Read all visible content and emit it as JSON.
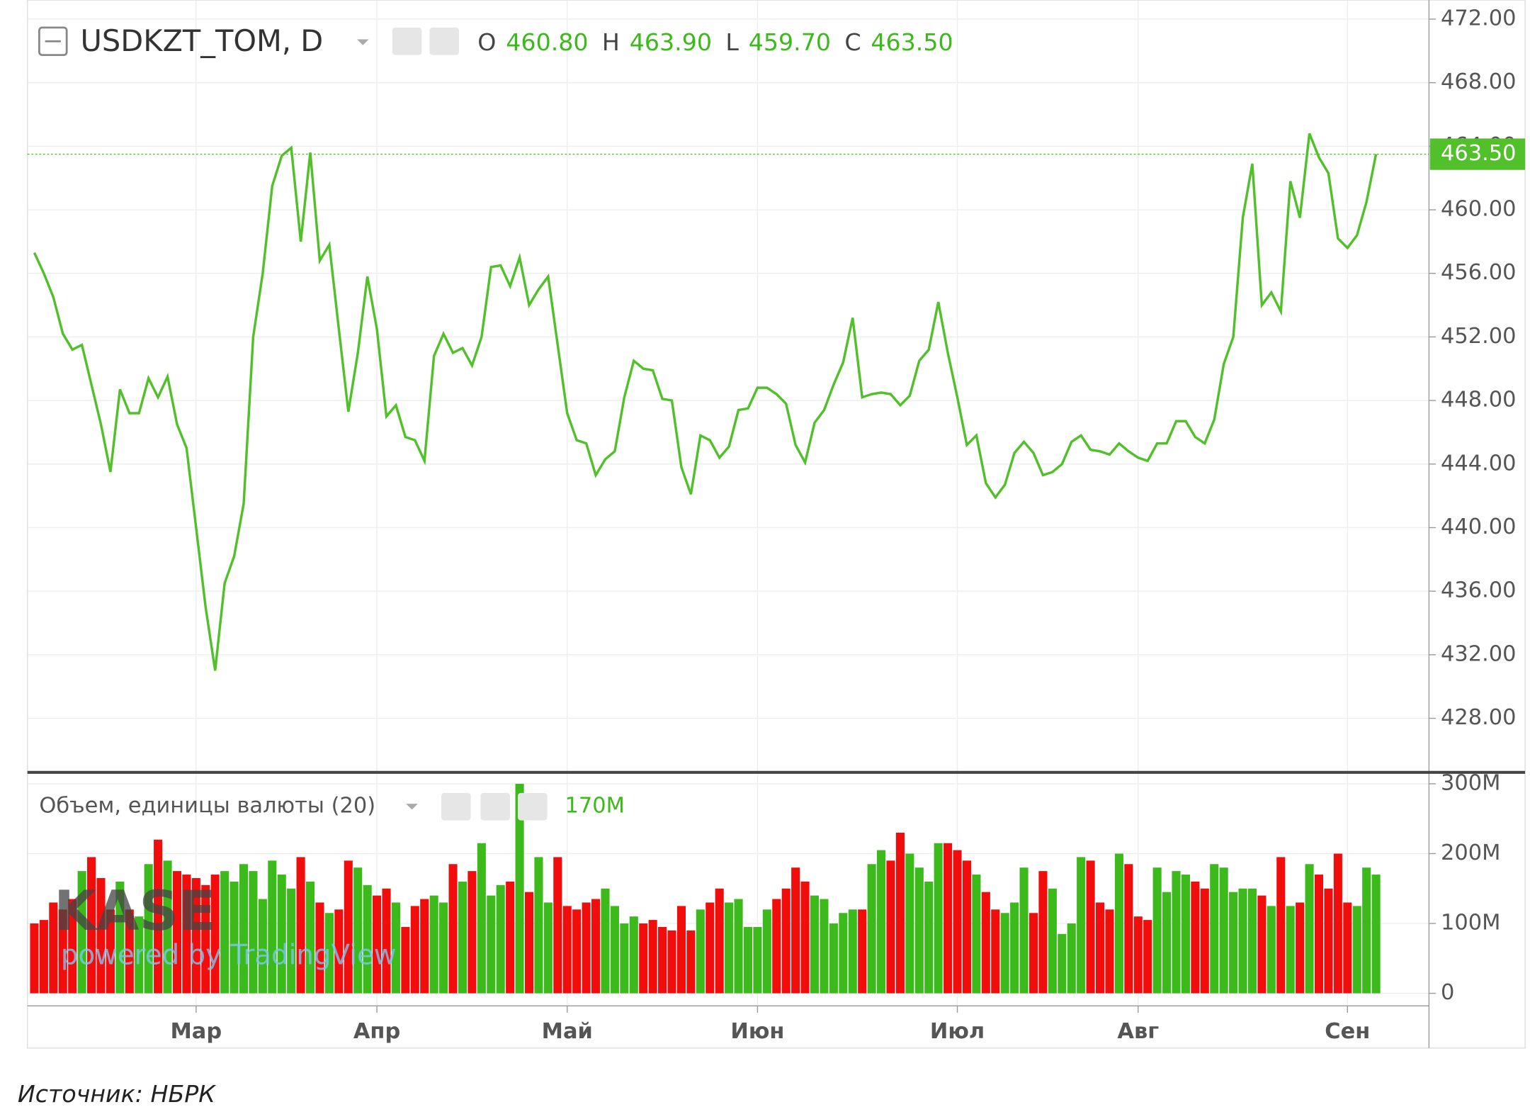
{
  "header": {
    "symbol": "USDKZT_TOM, D",
    "ohlc": [
      {
        "key": "O",
        "value": "460.80"
      },
      {
        "key": "H",
        "value": "463.90"
      },
      {
        "key": "L",
        "value": "459.70"
      },
      {
        "key": "C",
        "value": "463.50"
      }
    ],
    "volume_title": "Объем, единицы валюты (20)",
    "volume_current": "170M"
  },
  "watermark": {
    "brand": "KASE",
    "powered": "powered by TradingView"
  },
  "source": "Источник: НБРК",
  "chart_data": [
    {
      "type": "line",
      "color": "#52c02a",
      "grid": true,
      "categories": [
        null,
        null,
        null,
        null,
        null,
        null,
        null,
        null,
        null,
        null,
        null,
        null,
        null,
        null,
        null,
        null,
        null,
        "Мар",
        null,
        null,
        null,
        null,
        null,
        null,
        null,
        null,
        null,
        null,
        null,
        null,
        null,
        null,
        null,
        null,
        null,
        null,
        "Апр",
        null,
        null,
        null,
        null,
        null,
        null,
        null,
        null,
        null,
        null,
        null,
        null,
        null,
        null,
        null,
        null,
        null,
        null,
        null,
        "Май",
        null,
        null,
        null,
        null,
        null,
        null,
        null,
        null,
        null,
        null,
        null,
        null,
        null,
        null,
        null,
        null,
        null,
        null,
        null,
        "Июн",
        null,
        null,
        null,
        null,
        null,
        null,
        null,
        null,
        null,
        null,
        null,
        null,
        null,
        null,
        null,
        null,
        null,
        null,
        null,
        null,
        "Июл",
        null,
        null,
        null,
        null,
        null,
        null,
        null,
        null,
        null,
        null,
        null,
        null,
        null,
        null,
        null,
        null,
        null,
        null,
        "Авг",
        null,
        null,
        null,
        null,
        null,
        null,
        null,
        null,
        null,
        null,
        null,
        null,
        null,
        null,
        null,
        null,
        null,
        null,
        null,
        null,
        null,
        "Сен",
        null,
        null,
        null
      ],
      "values": [
        457.3,
        456,
        454.5,
        452.2,
        451.2,
        451.5,
        449,
        446.5,
        443.5,
        448.7,
        447.2,
        447.2,
        449.4,
        448.2,
        449.5,
        446.5,
        445,
        440,
        435,
        431,
        436.5,
        438.2,
        441.5,
        452,
        456,
        461.5,
        463.4,
        463.9,
        458,
        463.6,
        456.8,
        457.8,
        452.5,
        447.3,
        451,
        455.8,
        452.5,
        447,
        447.7,
        445.7,
        445.5,
        444.2,
        450.8,
        452.2,
        451,
        451.3,
        450.2,
        452,
        456.4,
        456.5,
        455.2,
        457,
        454,
        455,
        455.8,
        451.5,
        447.2,
        445.5,
        445.3,
        443.3,
        444.3,
        444.8,
        448.2,
        450.5,
        450,
        449.9,
        448.1,
        448,
        443.8,
        442.1,
        445.8,
        445.5,
        444.4,
        445.1,
        447.4,
        447.5,
        448.8,
        448.8,
        448.4,
        447.8,
        445.2,
        444.1,
        446.6,
        447.4,
        449,
        450.4,
        453.2,
        448.2,
        448.4,
        448.5,
        448.4,
        447.7,
        448.3,
        450.5,
        451.2,
        454.2,
        451,
        448.2,
        445.2,
        445.8,
        442.8,
        441.9,
        442.7,
        444.7,
        445.4,
        444.7,
        443.3,
        443.5,
        444,
        445.4,
        445.8,
        444.9,
        444.8,
        444.6,
        445.3,
        444.8,
        444.4,
        444.2,
        445.3,
        445.3,
        446.7,
        446.7,
        445.7,
        445.3,
        446.8,
        450.3,
        452,
        459.5,
        462.9,
        454,
        454.8,
        453.6,
        461.8,
        459.5,
        464.8,
        463.3,
        462.3,
        458.2,
        457.6,
        458.4,
        460.5,
        463.5
      ],
      "ylim": [
        424.6,
        473.2
      ],
      "yticks": [
        {
          "value": 428,
          "label": "428.00"
        },
        {
          "value": 432,
          "label": "432.00"
        },
        {
          "value": 436,
          "label": "436.00"
        },
        {
          "value": 440,
          "label": "440.00"
        },
        {
          "value": 444,
          "label": "444.00"
        },
        {
          "value": 448,
          "label": "448.00"
        },
        {
          "value": 452,
          "label": "452.00"
        },
        {
          "value": 456,
          "label": "456.00"
        },
        {
          "value": 460,
          "label": "460.00"
        },
        {
          "value": 464,
          "label": "464.00"
        },
        {
          "value": 468,
          "label": "468.00"
        },
        {
          "value": 472,
          "label": "472.00"
        }
      ],
      "last_price": {
        "value": 463.5,
        "label": "463.50"
      }
    },
    {
      "type": "bar",
      "up_color": "#3cba1c",
      "down_color": "#f20d0d",
      "grid": true,
      "values": [
        100000000,
        105000000,
        130000000,
        120000000,
        135000000,
        175000000,
        195000000,
        165000000,
        120000000,
        160000000,
        120000000,
        110000000,
        185000000,
        220000000,
        190000000,
        175000000,
        170000000,
        165000000,
        155000000,
        170000000,
        175000000,
        160000000,
        185000000,
        175000000,
        135000000,
        190000000,
        170000000,
        150000000,
        195000000,
        160000000,
        130000000,
        115000000,
        120000000,
        190000000,
        180000000,
        155000000,
        140000000,
        150000000,
        130000000,
        95000000,
        125000000,
        135000000,
        140000000,
        130000000,
        185000000,
        160000000,
        175000000,
        215000000,
        140000000,
        155000000,
        160000000,
        300000000,
        145000000,
        195000000,
        130000000,
        195000000,
        125000000,
        120000000,
        130000000,
        135000000,
        150000000,
        125000000,
        100000000,
        110000000,
        100000000,
        105000000,
        95000000,
        90000000,
        125000000,
        90000000,
        120000000,
        130000000,
        150000000,
        130000000,
        135000000,
        95000000,
        95000000,
        120000000,
        135000000,
        150000000,
        180000000,
        160000000,
        140000000,
        135000000,
        100000000,
        115000000,
        120000000,
        120000000,
        185000000,
        205000000,
        190000000,
        230000000,
        200000000,
        180000000,
        160000000,
        215000000,
        215000000,
        205000000,
        190000000,
        170000000,
        145000000,
        120000000,
        115000000,
        130000000,
        180000000,
        115000000,
        175000000,
        150000000,
        85000000,
        100000000,
        195000000,
        190000000,
        130000000,
        120000000,
        200000000,
        185000000,
        110000000,
        105000000,
        180000000,
        145000000,
        175000000,
        170000000,
        160000000,
        150000000,
        185000000,
        180000000,
        145000000,
        150000000,
        150000000,
        140000000,
        125000000,
        195000000,
        125000000,
        130000000,
        185000000,
        170000000,
        150000000,
        200000000,
        130000000,
        125000000,
        180000000,
        170000000
      ],
      "ylim": [
        -18000000,
        315000000
      ],
      "yticks": [
        0,
        {
          "value": 100000000,
          "label": "100M"
        },
        {
          "value": 200000000,
          "label": "200M"
        },
        {
          "value": 300000000,
          "label": "300M"
        }
      ]
    }
  ]
}
